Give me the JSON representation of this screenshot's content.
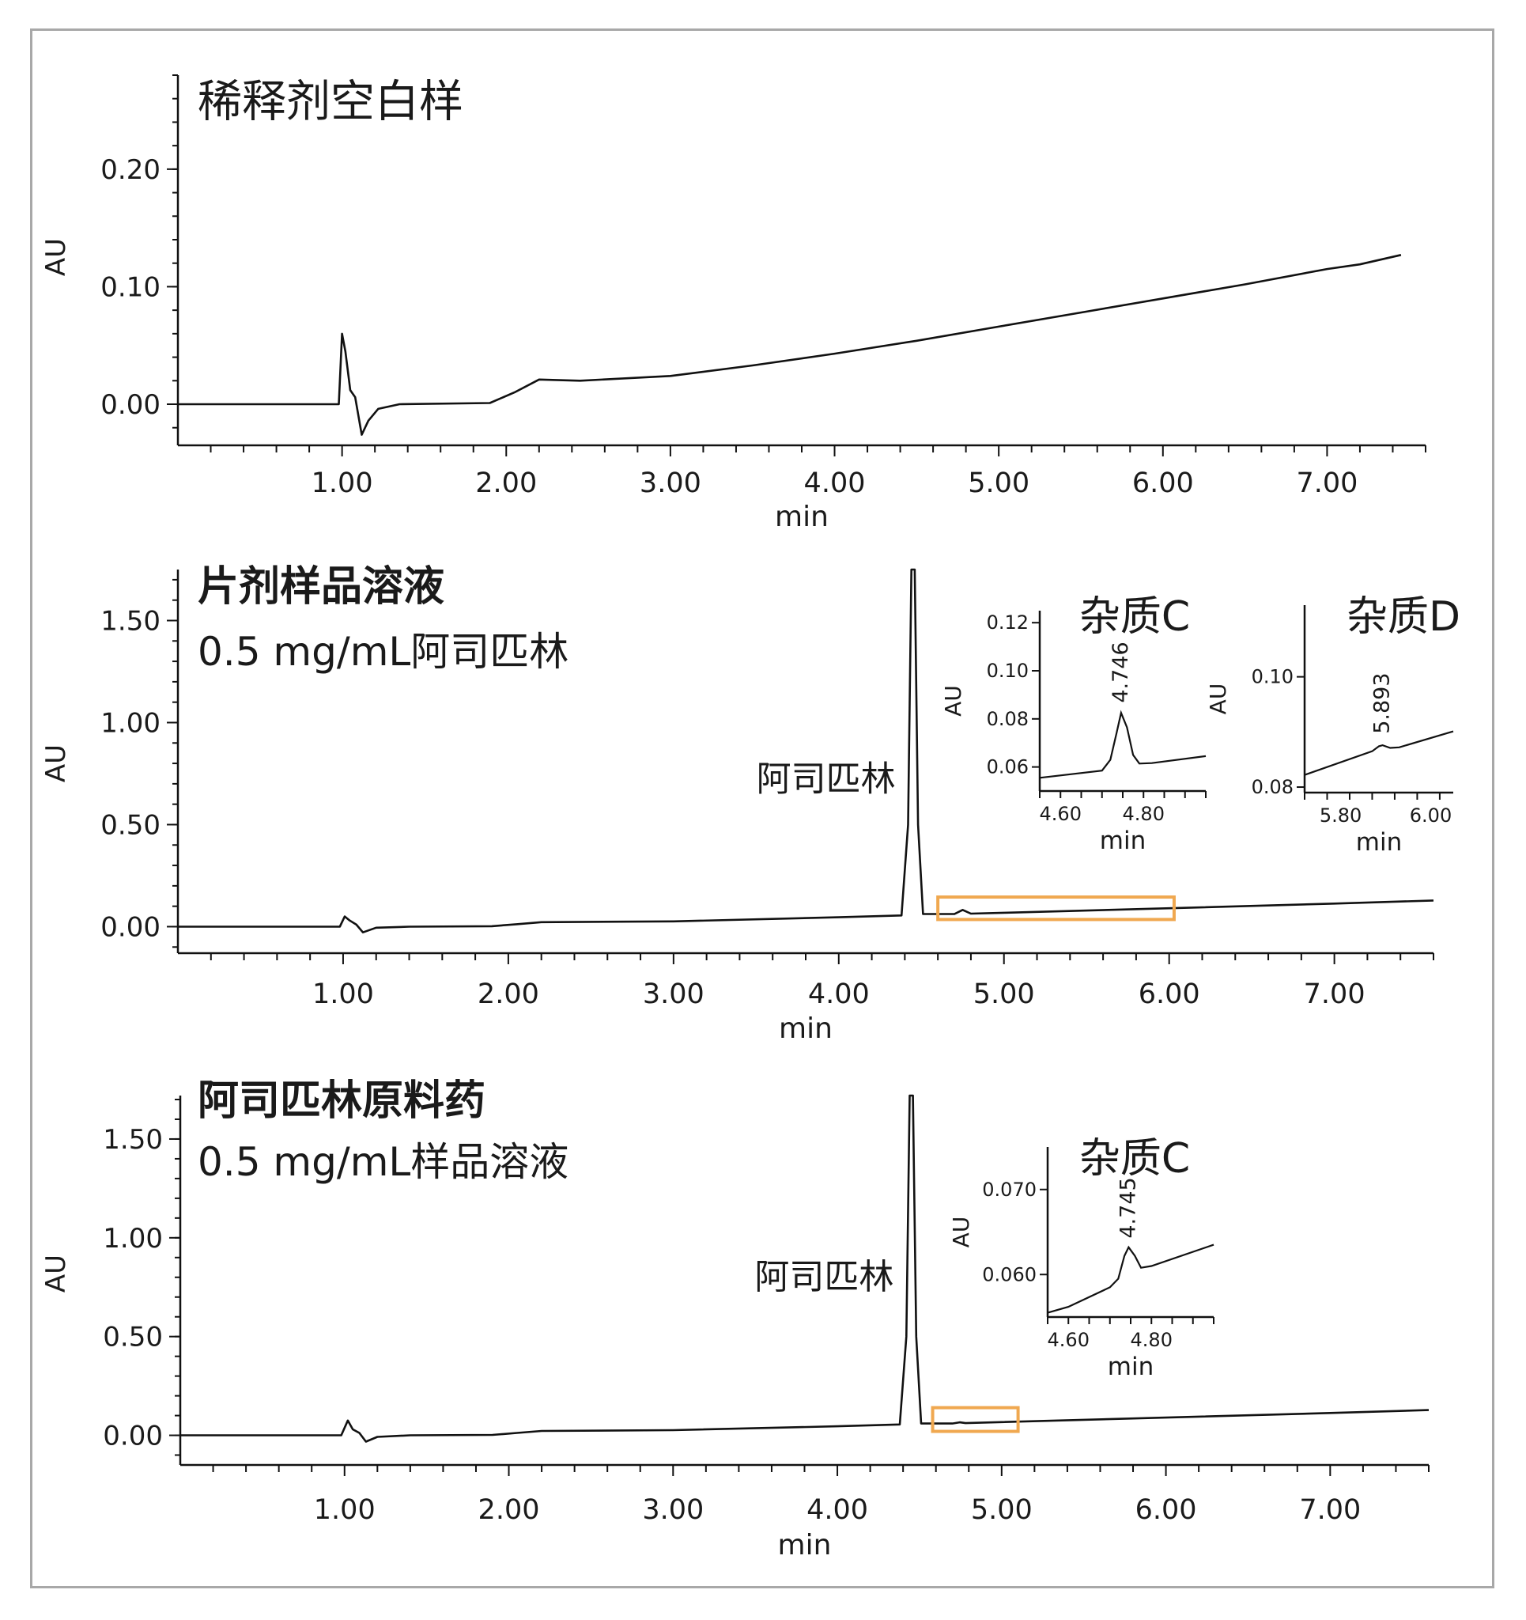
{
  "colors": {
    "trace": "#111111",
    "highlight": "#F0A850",
    "frame": "#a8a8a8"
  },
  "chart_data": [
    {
      "type": "line",
      "title": "稀释剂空白样",
      "subtitle": "",
      "xlabel": "min",
      "ylabel": "AU",
      "xlim": [
        0,
        7.6
      ],
      "ylim": [
        -0.035,
        0.28
      ],
      "xticks": [
        1.0,
        2.0,
        3.0,
        4.0,
        5.0,
        6.0,
        7.0
      ],
      "xtick_labels": [
        "1.00",
        "2.00",
        "3.00",
        "4.00",
        "5.00",
        "6.00",
        "7.00"
      ],
      "yticks": [
        0.0,
        0.1,
        0.2
      ],
      "ytick_labels": [
        "0.00",
        "0.10",
        "0.20"
      ],
      "grid": false,
      "series": [
        {
          "points": [
            [
              0,
              0.0
            ],
            [
              0.98,
              0.0
            ],
            [
              1.0,
              0.06
            ],
            [
              1.02,
              0.045
            ],
            [
              1.05,
              0.012
            ],
            [
              1.08,
              0.006
            ],
            [
              1.12,
              -0.026
            ],
            [
              1.16,
              -0.014
            ],
            [
              1.22,
              -0.004
            ],
            [
              1.35,
              0.0
            ],
            [
              1.9,
              0.001
            ],
            [
              2.05,
              0.01
            ],
            [
              2.2,
              0.021
            ],
            [
              2.45,
              0.02
            ],
            [
              3.0,
              0.024
            ],
            [
              3.5,
              0.033
            ],
            [
              4.0,
              0.043
            ],
            [
              4.5,
              0.054
            ],
            [
              5.0,
              0.066
            ],
            [
              5.5,
              0.078
            ],
            [
              6.0,
              0.09
            ],
            [
              6.5,
              0.102
            ],
            [
              7.0,
              0.115
            ],
            [
              7.2,
              0.119
            ],
            [
              7.45,
              0.127
            ]
          ]
        }
      ],
      "highlight": null,
      "annotations": [],
      "insets": []
    },
    {
      "type": "line",
      "title": "片剂样品溶液",
      "subtitle": "0.5 mg/mL阿司匹林",
      "xlabel": "min",
      "ylabel": "AU",
      "xlim": [
        0,
        7.6
      ],
      "ylim": [
        -0.13,
        1.75
      ],
      "xticks": [
        1.0,
        2.0,
        3.0,
        4.0,
        5.0,
        6.0,
        7.0
      ],
      "xtick_labels": [
        "1.00",
        "2.00",
        "3.00",
        "4.00",
        "5.00",
        "6.00",
        "7.00"
      ],
      "yticks": [
        0.0,
        0.5,
        1.0,
        1.5
      ],
      "ytick_labels": [
        "0.00",
        "0.50",
        "1.00",
        "1.50"
      ],
      "grid": false,
      "series": [
        {
          "points": [
            [
              0,
              0.0
            ],
            [
              0.98,
              0.0
            ],
            [
              1.01,
              0.05
            ],
            [
              1.04,
              0.03
            ],
            [
              1.08,
              0.01
            ],
            [
              1.12,
              -0.028
            ],
            [
              1.2,
              -0.005
            ],
            [
              1.4,
              0.0
            ],
            [
              1.9,
              0.002
            ],
            [
              2.05,
              0.012
            ],
            [
              2.2,
              0.022
            ],
            [
              3.0,
              0.026
            ],
            [
              4.0,
              0.046
            ],
            [
              4.38,
              0.055
            ],
            [
              4.42,
              0.5
            ],
            [
              4.44,
              1.75
            ],
            [
              4.46,
              1.75
            ],
            [
              4.48,
              0.5
            ],
            [
              4.51,
              0.062
            ],
            [
              4.7,
              0.062
            ],
            [
              4.75,
              0.082
            ],
            [
              4.8,
              0.064
            ],
            [
              5.0,
              0.068
            ],
            [
              6.0,
              0.09
            ],
            [
              7.0,
              0.113
            ],
            [
              7.6,
              0.128
            ]
          ]
        }
      ],
      "highlight": {
        "x": [
          4.6,
          6.03
        ],
        "y": [
          0.035,
          0.145
        ]
      },
      "annotations": [
        {
          "text": "阿司匹林",
          "x": 4.43,
          "y": 0.72
        }
      ],
      "insets": [
        {
          "title": "杂质C",
          "xlabel": "min",
          "ylabel": "AU",
          "xlim": [
            4.55,
            4.95
          ],
          "ylim": [
            0.05,
            0.125
          ],
          "xticks": [
            4.6,
            4.8
          ],
          "xtick_labels": [
            "4.60",
            "4.80"
          ],
          "yticks": [
            0.06,
            0.08,
            0.1,
            0.12
          ],
          "ytick_labels": [
            "0.06",
            "0.08",
            "0.10",
            "0.12"
          ],
          "peak_label": {
            "text": "4.746",
            "x": 4.746,
            "y": 0.084
          },
          "points": [
            [
              4.55,
              0.0555
            ],
            [
              4.7,
              0.0585
            ],
            [
              4.72,
              0.063
            ],
            [
              4.735,
              0.074
            ],
            [
              4.746,
              0.0825
            ],
            [
              4.76,
              0.0765
            ],
            [
              4.775,
              0.065
            ],
            [
              4.79,
              0.0614
            ],
            [
              4.82,
              0.0616
            ],
            [
              4.95,
              0.0645
            ]
          ]
        },
        {
          "title": "杂质D",
          "xlabel": "min",
          "ylabel": "AU",
          "xlim": [
            5.72,
            6.05
          ],
          "ylim": [
            0.079,
            0.113
          ],
          "xticks": [
            5.8,
            6.0
          ],
          "xtick_labels": [
            "5.80",
            "6.00"
          ],
          "yticks": [
            0.08,
            0.1
          ],
          "ytick_labels": [
            "0.08",
            "0.10"
          ],
          "peak_label": {
            "text": "5.893",
            "x": 5.893,
            "y": 0.0885
          },
          "points": [
            [
              5.72,
              0.0822
            ],
            [
              5.87,
              0.0865
            ],
            [
              5.885,
              0.0874
            ],
            [
              5.893,
              0.0876
            ],
            [
              5.91,
              0.0871
            ],
            [
              5.93,
              0.0872
            ],
            [
              6.05,
              0.0901
            ]
          ]
        }
      ]
    },
    {
      "type": "line",
      "title": "阿司匹林原料药",
      "subtitle": "0.5 mg/mL样品溶液",
      "xlabel": "min",
      "ylabel": "AU",
      "xlim": [
        0,
        7.6
      ],
      "ylim": [
        -0.15,
        1.72
      ],
      "xticks": [
        1.0,
        2.0,
        3.0,
        4.0,
        5.0,
        6.0,
        7.0
      ],
      "xtick_labels": [
        "1.00",
        "2.00",
        "3.00",
        "4.00",
        "5.00",
        "6.00",
        "7.00"
      ],
      "yticks": [
        0.0,
        0.5,
        1.0,
        1.5
      ],
      "ytick_labels": [
        "0.00",
        "0.50",
        "1.00",
        "1.50"
      ],
      "grid": false,
      "series": [
        {
          "points": [
            [
              0,
              0.0
            ],
            [
              0.98,
              0.0
            ],
            [
              1.02,
              0.075
            ],
            [
              1.05,
              0.03
            ],
            [
              1.09,
              0.012
            ],
            [
              1.13,
              -0.032
            ],
            [
              1.2,
              -0.008
            ],
            [
              1.4,
              0.0
            ],
            [
              1.9,
              0.002
            ],
            [
              2.05,
              0.012
            ],
            [
              2.2,
              0.022
            ],
            [
              3.0,
              0.026
            ],
            [
              4.0,
              0.046
            ],
            [
              4.38,
              0.055
            ],
            [
              4.42,
              0.5
            ],
            [
              4.44,
              1.72
            ],
            [
              4.46,
              1.72
            ],
            [
              4.48,
              0.5
            ],
            [
              4.51,
              0.06
            ],
            [
              4.7,
              0.06
            ],
            [
              4.745,
              0.066
            ],
            [
              4.78,
              0.062
            ],
            [
              5.0,
              0.067
            ],
            [
              6.0,
              0.09
            ],
            [
              7.0,
              0.113
            ],
            [
              7.6,
              0.128
            ]
          ]
        }
      ],
      "highlight": {
        "x": [
          4.58,
          5.1
        ],
        "y": 0.0,
        "y_range": [
          0.02,
          0.14
        ]
      },
      "annotations": [
        {
          "text": "阿司匹林",
          "x": 4.43,
          "y": 0.8
        }
      ],
      "insets": [
        {
          "title": "杂质C",
          "xlabel": "min",
          "ylabel": "AU",
          "xlim": [
            4.55,
            4.95
          ],
          "ylim": [
            0.055,
            0.075
          ],
          "xticks": [
            4.6,
            4.8
          ],
          "xtick_labels": [
            "4.60",
            "4.80"
          ],
          "yticks": [
            0.06,
            0.07
          ],
          "ytick_labels": [
            "0.060",
            "0.070"
          ],
          "peak_label": {
            "text": "4.745",
            "x": 4.745,
            "y": 0.0635
          },
          "points": [
            [
              4.55,
              0.0555
            ],
            [
              4.6,
              0.0562
            ],
            [
              4.7,
              0.0585
            ],
            [
              4.72,
              0.0595
            ],
            [
              4.735,
              0.0622
            ],
            [
              4.745,
              0.0632
            ],
            [
              4.76,
              0.0622
            ],
            [
              4.775,
              0.0608
            ],
            [
              4.8,
              0.061
            ],
            [
              4.95,
              0.0635
            ]
          ]
        }
      ]
    }
  ]
}
